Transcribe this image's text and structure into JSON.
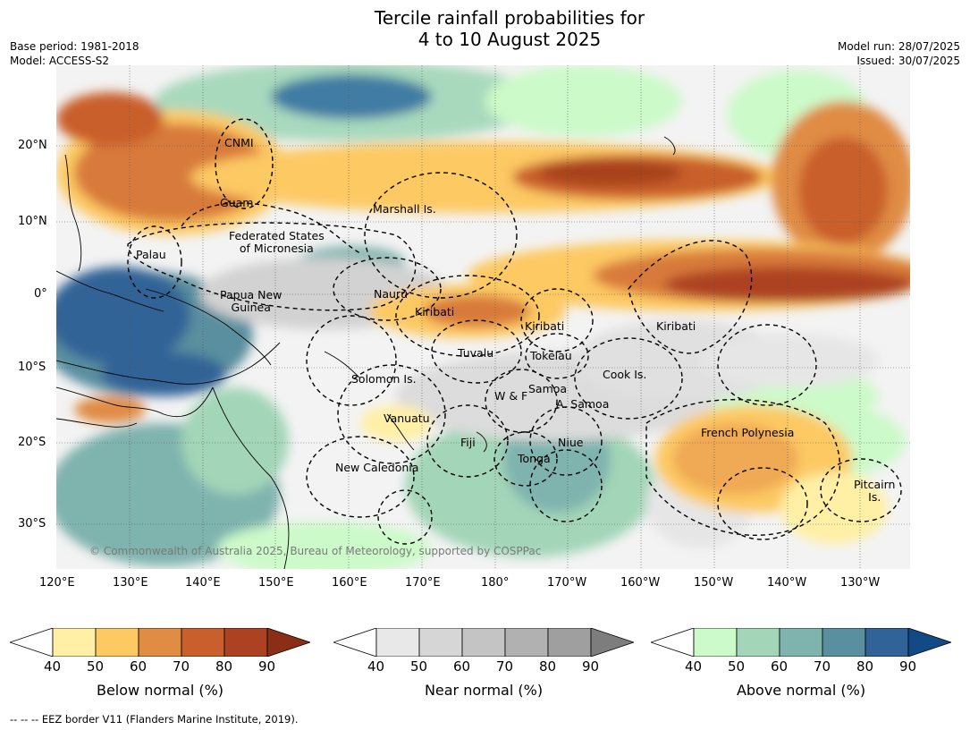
{
  "title": {
    "line1": "Tercile rainfall probabilities for",
    "line2": "4 to 10 August 2025"
  },
  "meta": {
    "base_period": "Base period: 1981-2018",
    "model": "Model: ACCESS-S2",
    "model_run": "Model run: 28/07/2025",
    "issued": "Issued: 30/07/2025"
  },
  "map": {
    "lat_ticks": [
      "20°N",
      "10°N",
      "0°",
      "10°S",
      "20°S",
      "30°S"
    ],
    "lon_ticks": [
      "120°E",
      "130°E",
      "140°E",
      "150°E",
      "160°E",
      "170°E",
      "180°",
      "170°W",
      "160°W",
      "150°W",
      "140°W",
      "130°W"
    ],
    "regions": [
      {
        "name": "CNMI"
      },
      {
        "name": "Guam"
      },
      {
        "name": "Marshall Is."
      },
      {
        "name": "Federated States\nof Micronesia"
      },
      {
        "name": "Palau"
      },
      {
        "name": "Nauru"
      },
      {
        "name": "Papua New\nGuinea"
      },
      {
        "name": "Kiribati"
      },
      {
        "name": "Kiribati"
      },
      {
        "name": "Kiribati"
      },
      {
        "name": "Tuvalu"
      },
      {
        "name": "Tokelau"
      },
      {
        "name": "Cook Is."
      },
      {
        "name": "Solomon Is."
      },
      {
        "name": "Samoa"
      },
      {
        "name": "W & F"
      },
      {
        "name": "A. Samoa"
      },
      {
        "name": "Vanuatu"
      },
      {
        "name": "Fiji"
      },
      {
        "name": "Niue"
      },
      {
        "name": "French Polynesia"
      },
      {
        "name": "Tonga"
      },
      {
        "name": "New Caledonia"
      },
      {
        "name": "Pitcairn\nIs."
      }
    ],
    "copyright": "© Commonwealth of Australia 2025, Bureau of Meteorology, supported by COSPPac"
  },
  "colorbars": [
    {
      "label": "Below normal (%)",
      "ticks": [
        "40",
        "50",
        "60",
        "70",
        "80",
        "90"
      ],
      "colors": [
        "#fff0a6",
        "#fdc963",
        "#e08c44",
        "#c95f2c",
        "#ad4222",
        "#8a2e17"
      ]
    },
    {
      "label": "Near normal (%)",
      "ticks": [
        "40",
        "50",
        "60",
        "70",
        "80",
        "90"
      ],
      "colors": [
        "#e8e8e8",
        "#d6d6d6",
        "#c4c4c4",
        "#b1b1b1",
        "#9f9f9f",
        "#7d7d7d"
      ]
    },
    {
      "label": "Above normal (%)",
      "ticks": [
        "40",
        "50",
        "60",
        "70",
        "80",
        "90"
      ],
      "colors": [
        "#ccfac9",
        "#a3d6b8",
        "#7fb3ae",
        "#5a8f9f",
        "#306397",
        "#124a85"
      ]
    }
  ],
  "footnote": "--  --  -- EEZ border V11 (Flanders Marine Institute, 2019)."
}
